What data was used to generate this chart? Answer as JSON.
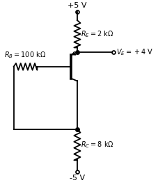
{
  "bg_color": "#ffffff",
  "vcc_label": "+5 V",
  "vee_label": "-5 V",
  "re_label": "$R_E = 2$ kΩ",
  "rb_label": "$R_B = 100$ kΩ",
  "rc_label": "$R_C = 8$ kΩ",
  "ve_label": "$V_E = +4$ V",
  "line_color": "#000000",
  "lw": 1.3
}
